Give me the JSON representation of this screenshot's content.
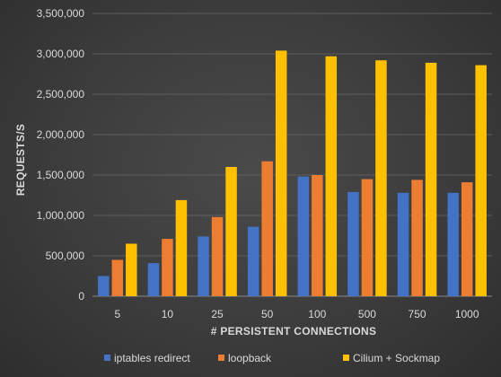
{
  "chart_data": {
    "type": "bar",
    "title": "",
    "xlabel": "#  PERSISTENT CONNECTIONS",
    "ylabel": "REQUESTS/S",
    "categories": [
      "5",
      "10",
      "25",
      "50",
      "100",
      "500",
      "750",
      "1000"
    ],
    "ylim": [
      0,
      3500000
    ],
    "yticks": [
      0,
      500000,
      1000000,
      1500000,
      2000000,
      2500000,
      3000000,
      3500000
    ],
    "ytick_labels": [
      "0",
      "500,000",
      "1,000,000",
      "1,500,000",
      "2,000,000",
      "2,500,000",
      "3,000,000",
      "3,500,000"
    ],
    "grid": true,
    "legend_position": "bottom",
    "series": [
      {
        "name": "iptables redirect",
        "color": "#4472C4",
        "values": [
          250000,
          410000,
          740000,
          860000,
          1480000,
          1290000,
          1280000,
          1280000
        ]
      },
      {
        "name": "loopback",
        "color": "#ED7D31",
        "values": [
          450000,
          710000,
          980000,
          1670000,
          1500000,
          1450000,
          1440000,
          1410000
        ]
      },
      {
        "name": "Cilium + Sockmap",
        "color": "#FFC000",
        "values": [
          650000,
          1190000,
          1600000,
          3040000,
          2970000,
          2920000,
          2890000,
          2860000
        ]
      }
    ]
  }
}
